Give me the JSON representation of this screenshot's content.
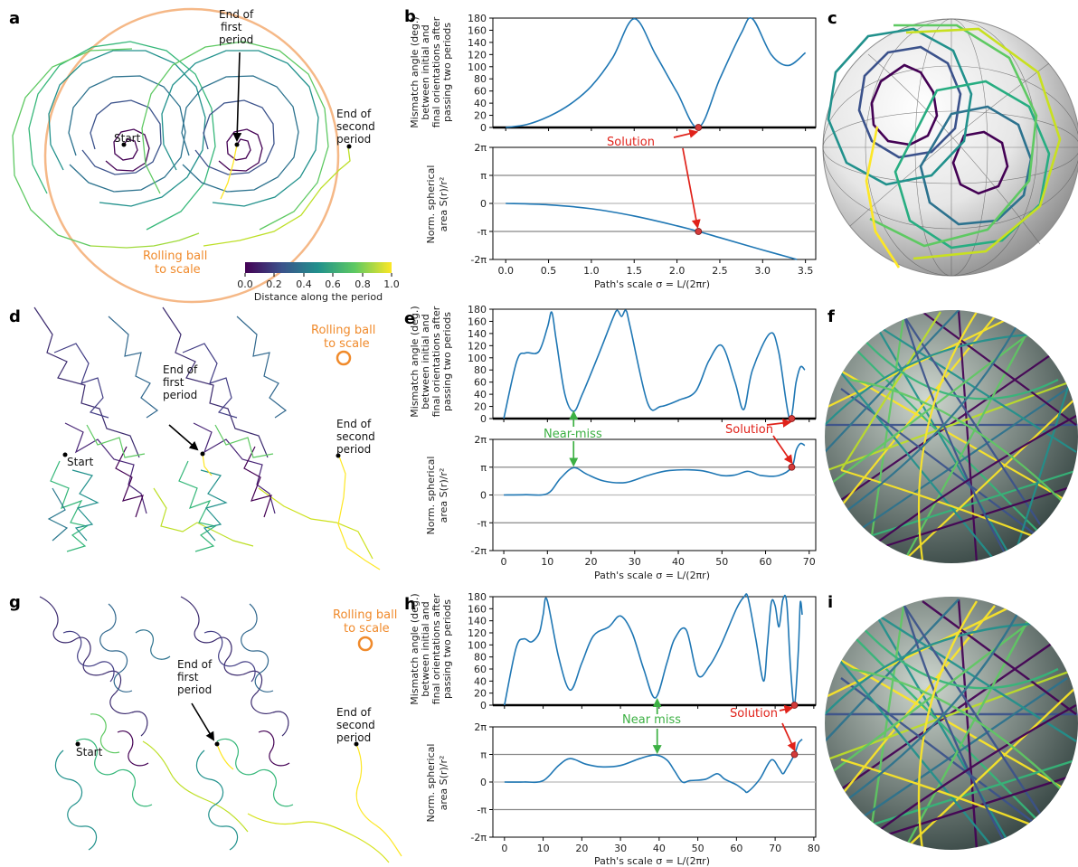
{
  "panel_labels": [
    "a",
    "b",
    "c",
    "d",
    "e",
    "f",
    "g",
    "h",
    "i"
  ],
  "annotations": {
    "start": "Start",
    "end_first": [
      "End of",
      "first",
      "period"
    ],
    "end_second": [
      "End of",
      "second",
      "period"
    ],
    "rolling_ball": [
      "Rolling ball",
      "to scale"
    ],
    "solution": "Solution",
    "near_miss_e": "Near-miss",
    "near_miss_h": "Near miss"
  },
  "colorbar": {
    "label": "Distance along the period",
    "ticks": [
      "0.0",
      "0.2",
      "0.4",
      "0.6",
      "0.8",
      "1.0"
    ],
    "colormap": "viridis"
  },
  "axis_labels": {
    "mismatch": [
      "Mismatch angle (deg.)",
      "between initial and",
      "final orientations after",
      "passing two periods"
    ],
    "area": [
      "Norm. spherical",
      "area S(r)/r²"
    ],
    "xlabel": "Path's scale σ = L/(2πr)"
  },
  "colors": {
    "line": "#1f77b4",
    "ball": "#f5b887",
    "ball_small": "#f08a2b",
    "solution": "#e0221a",
    "near_miss": "#3cb043"
  },
  "chart_data": [
    {
      "panel": "b",
      "type": "line",
      "x": [
        0,
        0.25,
        0.5,
        0.75,
        1.0,
        1.25,
        1.5,
        1.75,
        2.0,
        2.25,
        2.5,
        2.75,
        2.88,
        3.1,
        3.3,
        3.5
      ],
      "y": [
        0,
        5,
        18,
        38,
        68,
        115,
        179,
        120,
        58,
        0,
        80,
        155,
        179,
        120,
        102,
        123
      ],
      "ylim": [
        0,
        180
      ],
      "yticks": [
        "0",
        "20",
        "40",
        "60",
        "80",
        "100",
        "120",
        "140",
        "160",
        "180"
      ],
      "xlim": [
        -0.15,
        3.62
      ]
    },
    {
      "panel": "b2",
      "type": "line",
      "x": [
        0,
        0.5,
        1.0,
        1.5,
        2.0,
        2.25,
        2.5,
        3.0,
        3.4
      ],
      "y": [
        0,
        -0.05,
        -0.19,
        -0.45,
        -0.8,
        -1.0,
        -1.22,
        -1.66,
        -2.0
      ],
      "yunit": "π",
      "ylim": [
        -2,
        2
      ],
      "yticks": [
        "-2π",
        "-π",
        "0",
        "π",
        "2π"
      ],
      "xticks": [
        "0.0",
        "0.5",
        "1.0",
        "1.5",
        "2.0",
        "2.5",
        "3.0",
        "3.5"
      ],
      "xlim": [
        -0.15,
        3.62
      ],
      "solution": [
        2.25,
        -1.0
      ]
    },
    {
      "panel": "e",
      "type": "line",
      "x": [
        0,
        3,
        5,
        8,
        10,
        11,
        12,
        14,
        16,
        18,
        22,
        25,
        26,
        27,
        28,
        29,
        33,
        36,
        40,
        44,
        47,
        50,
        53,
        55,
        57,
        61,
        63,
        65.5,
        67,
        68,
        69
      ],
      "y": [
        0,
        95,
        108,
        110,
        150,
        175,
        130,
        40,
        12,
        40,
        110,
        165,
        178,
        168,
        178,
        150,
        25,
        20,
        30,
        45,
        95,
        120,
        60,
        15,
        80,
        140,
        110,
        0,
        60,
        85,
        80
      ],
      "ylim": [
        0,
        180
      ],
      "yticks": [
        "0",
        "20",
        "40",
        "60",
        "80",
        "100",
        "120",
        "140",
        "160",
        "180"
      ],
      "xlim": [
        -2.5,
        71.5
      ]
    },
    {
      "panel": "e2",
      "type": "line",
      "x": [
        0,
        5,
        10,
        13,
        16,
        19,
        23,
        28,
        33,
        38,
        45,
        50,
        53,
        56,
        59,
        63,
        66,
        67,
        68,
        69
      ],
      "y": [
        0,
        0.01,
        0.05,
        0.6,
        0.98,
        0.75,
        0.5,
        0.45,
        0.7,
        0.88,
        0.88,
        0.7,
        0.72,
        0.85,
        0.7,
        0.7,
        1.0,
        1.6,
        1.85,
        1.78
      ],
      "yunit": "π",
      "ylim": [
        -2,
        2
      ],
      "yticks": [
        "-2π",
        "-π",
        "0",
        "π",
        "2π"
      ],
      "xticks": [
        "0",
        "10",
        "20",
        "30",
        "40",
        "50",
        "60",
        "70"
      ],
      "xlim": [
        -2.5,
        71.5
      ],
      "near_miss": [
        16,
        0.98
      ],
      "solution": [
        66,
        1.0
      ]
    },
    {
      "panel": "h",
      "type": "line",
      "x": [
        0,
        3,
        5,
        7,
        9,
        10,
        11,
        14,
        17,
        20,
        23,
        27,
        30,
        33,
        36,
        39,
        42,
        44,
        47,
        50,
        53,
        56,
        60,
        62,
        63,
        65,
        67,
        68,
        69,
        70,
        71,
        72,
        73,
        74,
        75,
        76,
        76.5,
        77
      ],
      "y": [
        0,
        95,
        110,
        105,
        120,
        150,
        175,
        80,
        25,
        70,
        115,
        130,
        148,
        120,
        60,
        12,
        70,
        110,
        125,
        50,
        65,
        100,
        160,
        180,
        178,
        110,
        40,
        100,
        170,
        165,
        130,
        175,
        170,
        60,
        0,
        90,
        170,
        150
      ],
      "ylim": [
        0,
        180
      ],
      "yticks": [
        "0",
        "20",
        "40",
        "60",
        "80",
        "100",
        "120",
        "140",
        "160",
        "180"
      ],
      "xlim": [
        -3,
        80.5
      ]
    },
    {
      "panel": "h2",
      "type": "line",
      "x": [
        0,
        5,
        10,
        14,
        17,
        21,
        25,
        30,
        35,
        39,
        42,
        44,
        46,
        48,
        52,
        55,
        57,
        60,
        62,
        63,
        66,
        69,
        71,
        72,
        73,
        75,
        76,
        77
      ],
      "y": [
        0,
        0,
        0.05,
        0.6,
        0.85,
        0.65,
        0.55,
        0.6,
        0.85,
        0.98,
        0.8,
        0.4,
        0,
        0.05,
        0.1,
        0.3,
        0.1,
        -0.1,
        -0.3,
        -0.35,
        0.1,
        0.8,
        0.5,
        0.3,
        0.5,
        1.0,
        1.4,
        1.55
      ],
      "yunit": "π",
      "ylim": [
        -2,
        2
      ],
      "yticks": [
        "-2π",
        "-π",
        "0",
        "π",
        "2π"
      ],
      "xticks": [
        "0",
        "10",
        "20",
        "30",
        "40",
        "50",
        "60",
        "70",
        "80"
      ],
      "xlim": [
        -3,
        80.5
      ],
      "near_miss": [
        39.5,
        0.98
      ],
      "solution": [
        75,
        1.0
      ]
    }
  ]
}
